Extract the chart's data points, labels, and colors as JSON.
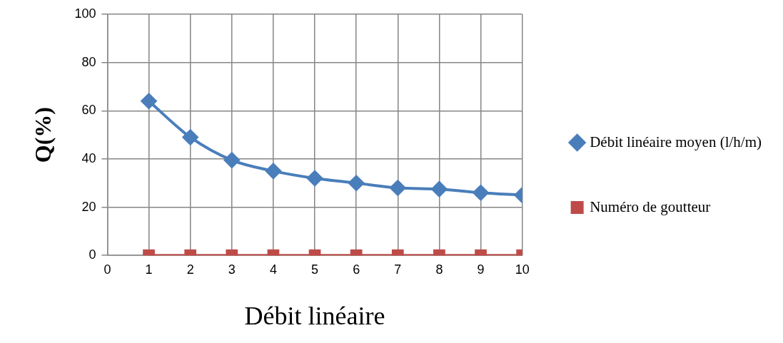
{
  "chart_data": {
    "type": "line",
    "xlabel": "Débit linéaire",
    "ylabel": "Q(%)",
    "x": [
      1,
      2,
      3,
      4,
      5,
      6,
      7,
      8,
      9,
      10
    ],
    "series": [
      {
        "name": "Débit linéaire moyen (l/h/m)",
        "color": "#4a7ebb",
        "marker": "diamond",
        "values": [
          64,
          49,
          39.5,
          35,
          32,
          30,
          28,
          27.5,
          26,
          25
        ]
      },
      {
        "name": "Numéro de goutteur",
        "color": "#be4b48",
        "marker": "square",
        "values": [
          0,
          0,
          0,
          0,
          0,
          0,
          0,
          0,
          0,
          0
        ]
      }
    ],
    "xlim": [
      0,
      10
    ],
    "ylim": [
      0,
      100
    ],
    "xticks": [
      0,
      1,
      2,
      3,
      4,
      5,
      6,
      7,
      8,
      9,
      10
    ],
    "yticks": [
      0,
      20,
      40,
      60,
      80,
      100
    ],
    "grid": true,
    "legend": "right"
  }
}
